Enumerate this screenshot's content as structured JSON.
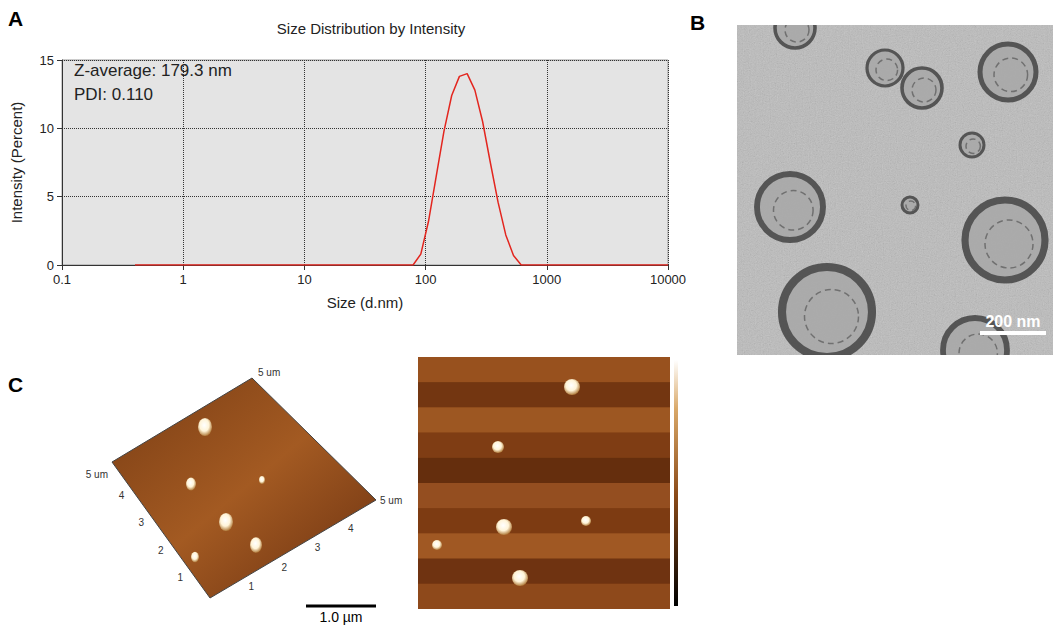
{
  "chart_data": {
    "type": "line",
    "title": "Size Distribution by Intensity",
    "x_label": "Size (d.nm)",
    "y_label": "Intensity (Percent)",
    "annotations": [
      "Z-average: 179.3 nm",
      "PDI: 0.110"
    ],
    "x": [
      0.4,
      1,
      10,
      68.06,
      78.82,
      91.28,
      105.7,
      122.4,
      141.8,
      164.2,
      190.1,
      220.2,
      255.0,
      295.3,
      342.0,
      396.1,
      458.7,
      531.2,
      615.1,
      712.4,
      1000,
      10000
    ],
    "values": [
      0,
      0,
      0,
      0,
      0,
      0.8,
      3.2,
      6.5,
      9.8,
      12.4,
      13.8,
      14.0,
      12.8,
      10.5,
      7.5,
      4.6,
      2.2,
      0.7,
      0,
      0,
      0,
      0
    ],
    "color": "#e3261f",
    "xlim": [
      0.1,
      10000
    ],
    "xticks": [
      0.1,
      1,
      10,
      100,
      1000,
      10000
    ],
    "ylim": [
      0,
      15
    ],
    "yticks": [
      0,
      5,
      10,
      15
    ],
    "log": "x",
    "grid": true
  },
  "figure": {
    "panel_labels": [
      "A",
      "B",
      "C"
    ],
    "B": {
      "scale_bar": "200 nm"
    },
    "C": {
      "scale_bar": "1.0 µm",
      "axis_end": "5 um",
      "axis_ticks": [
        1,
        2,
        3,
        4
      ]
    }
  }
}
